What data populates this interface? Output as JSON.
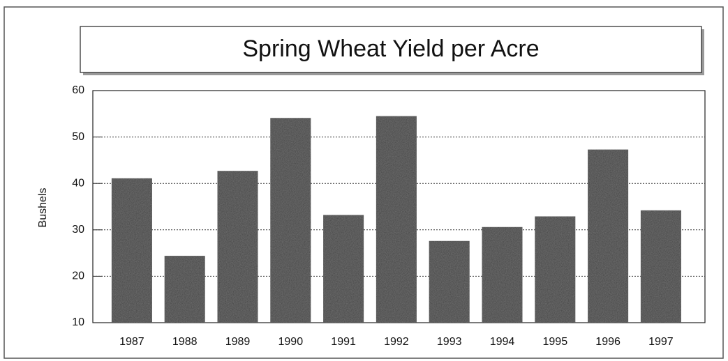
{
  "chart_data": {
    "type": "bar",
    "title": "Spring Wheat Yield per Acre",
    "y_label": "Bushels",
    "categories": [
      "1987",
      "1988",
      "1989",
      "1990",
      "1991",
      "1992",
      "1993",
      "1994",
      "1995",
      "1996",
      "1997"
    ],
    "values": [
      41.1,
      24.4,
      42.7,
      54.1,
      33.2,
      54.5,
      27.6,
      30.6,
      32.9,
      47.3,
      34.2
    ],
    "color": "#3c3c3c",
    "ylim": [
      10,
      60
    ],
    "yticks": [
      10,
      20,
      30,
      40,
      50,
      60
    ],
    "grid": true
  }
}
